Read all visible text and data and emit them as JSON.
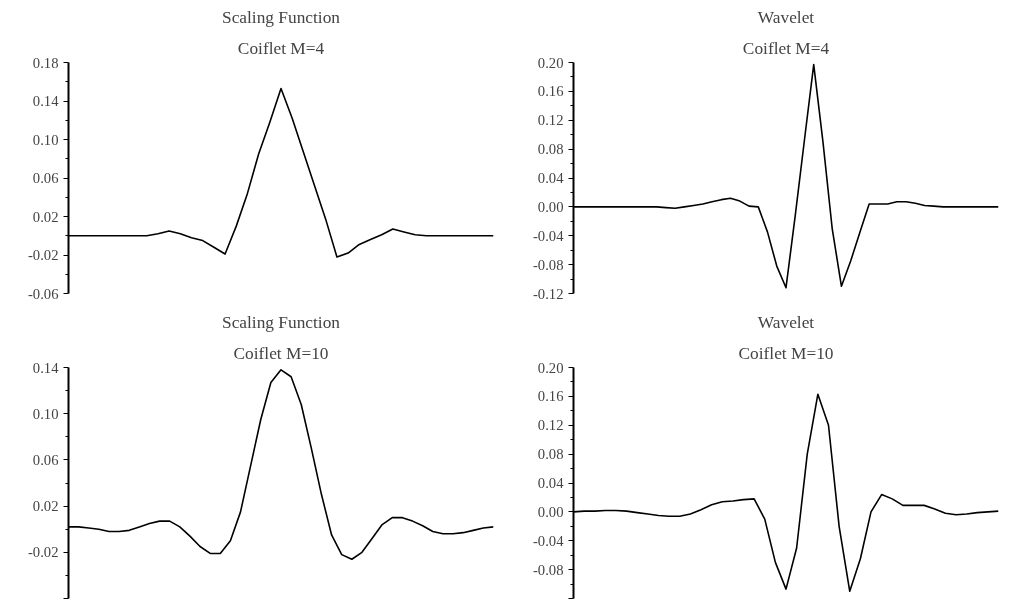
{
  "chart_data": [
    {
      "type": "line",
      "title": "Scaling Function",
      "subtitle": "Coiflet M=4",
      "tick_labels": "y",
      "categories": [
        null,
        null,
        null,
        null,
        null,
        null,
        null,
        null,
        null,
        null,
        null,
        null,
        null,
        null,
        null,
        null,
        null,
        null,
        null,
        null,
        null,
        null,
        null,
        null,
        null,
        null,
        null,
        null,
        null,
        null,
        null,
        null,
        null,
        null,
        null,
        null,
        null,
        null,
        null
      ],
      "series": [
        {
          "color": "#000000",
          "values": [
            0,
            0,
            0,
            0,
            0,
            0,
            0,
            0,
            0.002,
            0.005,
            0.002,
            -0.002,
            -0.005,
            -0.012,
            -0.019,
            0.01,
            0.044,
            0.085,
            0.118,
            0.153,
            0.122,
            0.087,
            0.052,
            0.017,
            -0.022,
            -0.018,
            -0.009,
            -0.004,
            0.001,
            0.007,
            0.004,
            0.001,
            0,
            0,
            0,
            0,
            0,
            0,
            0
          ]
        }
      ],
      "ylim": [
        -0.06,
        0.18
      ],
      "yticks": [
        {
          "value": -0.06,
          "label": "-0.06"
        },
        {
          "value": -0.02,
          "label": "-0.02"
        },
        {
          "value": 0.02,
          "label": "0.02"
        },
        {
          "value": 0.06,
          "label": "0.06"
        },
        {
          "value": 0.1,
          "label": "0.10"
        },
        {
          "value": 0.14,
          "label": "0.14"
        },
        {
          "value": 0.18,
          "label": "0.18"
        }
      ]
    },
    {
      "type": "line",
      "title": "Wavelet",
      "subtitle": "Coiflet M=4",
      "tick_labels": "y",
      "categories": [
        null,
        null,
        null,
        null,
        null,
        null,
        null,
        null,
        null,
        null,
        null,
        null,
        null,
        null,
        null,
        null,
        null,
        null,
        null,
        null,
        null,
        null,
        null,
        null,
        null,
        null,
        null,
        null,
        null,
        null,
        null,
        null,
        null,
        null,
        null,
        null,
        null,
        null,
        null,
        null,
        null,
        null,
        null,
        null,
        null,
        null,
        null
      ],
      "series": [
        {
          "color": "#000000",
          "values": [
            0,
            0,
            0,
            0,
            0,
            0,
            0,
            0,
            0,
            0,
            -0.001,
            -0.002,
            0,
            0.002,
            0.004,
            0.007,
            0.01,
            0.012,
            0.008,
            0.001,
            0,
            -0.035,
            -0.082,
            -0.112,
            -0.012,
            0.093,
            0.197,
            0.09,
            -0.03,
            -0.11,
            -0.075,
            -0.035,
            0.004,
            0.004,
            0.004,
            0.007,
            0.007,
            0.005,
            0.002,
            0.001,
            0,
            0,
            0,
            0,
            0,
            0,
            0
          ]
        }
      ],
      "ylim": [
        -0.12,
        0.2
      ],
      "yticks": [
        {
          "value": -0.12,
          "label": "-0.12"
        },
        {
          "value": -0.08,
          "label": "-0.08"
        },
        {
          "value": -0.04,
          "label": "-0.04"
        },
        {
          "value": 0,
          "label": "0.00"
        },
        {
          "value": 0.04,
          "label": "0.04"
        },
        {
          "value": 0.08,
          "label": "0.08"
        },
        {
          "value": 0.12,
          "label": "0.12"
        },
        {
          "value": 0.16,
          "label": "0.16"
        },
        {
          "value": 0.2,
          "label": "0.20"
        }
      ]
    },
    {
      "type": "line",
      "title": "Scaling Function",
      "subtitle": "Coiflet M=10",
      "tick_labels": "y",
      "categories": [
        null,
        null,
        null,
        null,
        null,
        null,
        null,
        null,
        null,
        null,
        null,
        null,
        null,
        null,
        null,
        null,
        null,
        null,
        null,
        null,
        null,
        null,
        null,
        null,
        null,
        null,
        null,
        null,
        null,
        null,
        null,
        null,
        null,
        null,
        null,
        null,
        null,
        null,
        null,
        null,
        null,
        null,
        null
      ],
      "series": [
        {
          "color": "#000000",
          "values": [
            0.002,
            0.002,
            0.001,
            0,
            -0.002,
            -0.002,
            -0.001,
            0.002,
            0.005,
            0.007,
            0.007,
            0.002,
            -0.006,
            -0.015,
            -0.021,
            -0.021,
            -0.01,
            0.015,
            0.055,
            0.095,
            0.127,
            0.138,
            0.132,
            0.108,
            0.07,
            0.03,
            -0.005,
            -0.022,
            -0.026,
            -0.02,
            -0.008,
            0.004,
            0.01,
            0.01,
            0.007,
            0.003,
            -0.002,
            -0.004,
            -0.004,
            -0.003,
            -0.001,
            0.001,
            0.002
          ]
        }
      ],
      "ylim": [
        -0.06,
        0.14
      ],
      "yticks": [
        {
          "value": -0.06,
          "label": null
        },
        {
          "value": -0.02,
          "label": "-0.02"
        },
        {
          "value": 0.02,
          "label": "0.02"
        },
        {
          "value": 0.06,
          "label": "0.06"
        },
        {
          "value": 0.1,
          "label": "0.10"
        },
        {
          "value": 0.14,
          "label": "0.14"
        }
      ]
    },
    {
      "type": "line",
      "title": "Wavelet",
      "subtitle": "Coiflet M=10",
      "tick_labels": "y",
      "categories": [
        null,
        null,
        null,
        null,
        null,
        null,
        null,
        null,
        null,
        null,
        null,
        null,
        null,
        null,
        null,
        null,
        null,
        null,
        null,
        null,
        null,
        null,
        null,
        null,
        null,
        null,
        null,
        null,
        null,
        null,
        null,
        null,
        null,
        null,
        null,
        null,
        null,
        null,
        null,
        null,
        null
      ],
      "series": [
        {
          "color": "#000000",
          "values": [
            0,
            0.001,
            0.001,
            0.002,
            0.002,
            0.001,
            -0.001,
            -0.003,
            -0.005,
            -0.006,
            -0.006,
            -0.003,
            0.003,
            0.01,
            0.014,
            0.015,
            0.017,
            0.018,
            -0.01,
            -0.07,
            -0.107,
            -0.05,
            0.08,
            0.163,
            0.12,
            -0.02,
            -0.11,
            -0.065,
            0,
            0.024,
            0.018,
            0.009,
            0.009,
            0.009,
            0.004,
            -0.002,
            -0.004,
            -0.003,
            -0.001,
            0,
            0.001
          ]
        }
      ],
      "ylim": [
        -0.12,
        0.2
      ],
      "yticks": [
        {
          "value": -0.12,
          "label": null
        },
        {
          "value": -0.08,
          "label": "-0.08"
        },
        {
          "value": -0.04,
          "label": "-0.04"
        },
        {
          "value": 0,
          "label": "0.00"
        },
        {
          "value": 0.04,
          "label": "0.04"
        },
        {
          "value": 0.08,
          "label": "0.08"
        },
        {
          "value": 0.12,
          "label": "0.12"
        },
        {
          "value": 0.16,
          "label": "0.16"
        },
        {
          "value": 0.2,
          "label": "0.20"
        }
      ]
    }
  ]
}
